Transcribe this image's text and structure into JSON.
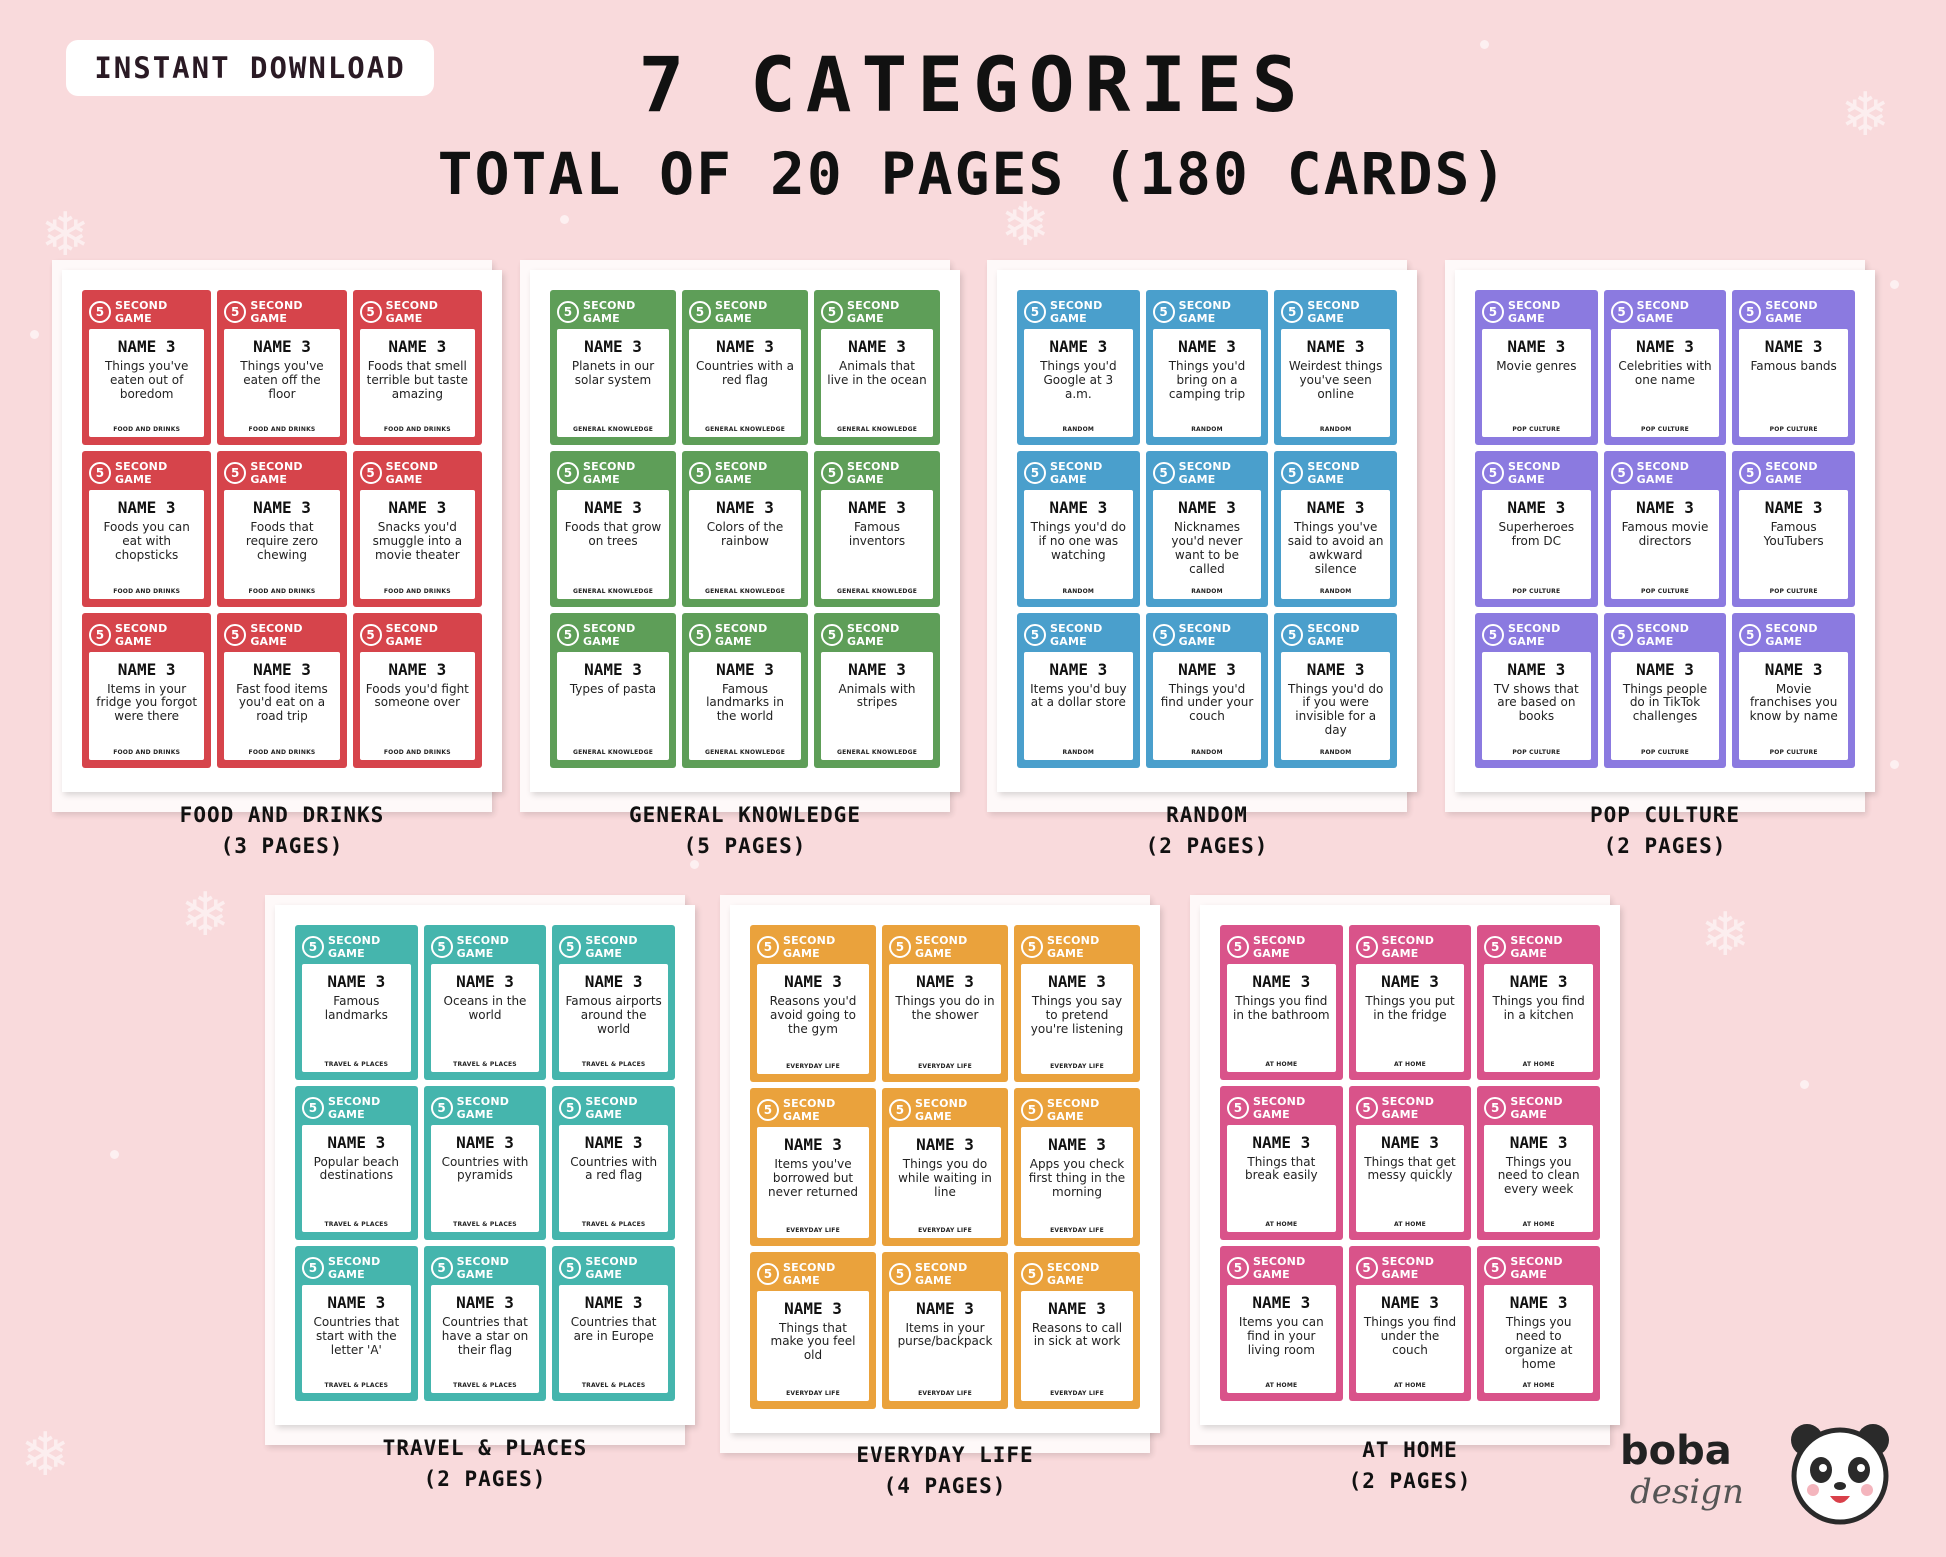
{
  "header": {
    "badge": "INSTANT DOWNLOAD",
    "title": "7 CATEGORIES",
    "subtitle": "TOTAL OF 20 PAGES (180 CARDS)"
  },
  "card_brand": "SECOND GAME",
  "card_number": "5",
  "card_heading": "NAME 3",
  "logo": {
    "name": "boba",
    "sub": "design",
    "icon": "panda-face-icon"
  },
  "categories": [
    {
      "label": "FOOD AND DRINKS",
      "pages": "(3 PAGES)",
      "footer": "FOOD AND DRINKS",
      "color": "#d6444b",
      "cards": [
        "Things you've eaten out of boredom",
        "Things you've eaten off the floor",
        "Foods that smell terrible but taste amazing",
        "Foods you can eat with chopsticks",
        "Foods that require zero chewing",
        "Snacks you'd smuggle into a movie theater",
        "Items in your fridge you forgot were there",
        "Fast food items you'd eat on a road trip",
        "Foods you'd fight someone over"
      ]
    },
    {
      "label": "GENERAL KNOWLEDGE",
      "pages": "(5 PAGES)",
      "footer": "GENERAL KNOWLEDGE",
      "color": "#5e9e58",
      "cards": [
        "Planets in our solar system",
        "Countries with a red flag",
        "Animals that live in the ocean",
        "Foods that grow on trees",
        "Colors of the rainbow",
        "Famous inventors",
        "Types of pasta",
        "Famous landmarks in the world",
        "Animals with stripes"
      ]
    },
    {
      "label": "RANDOM",
      "pages": "(2 PAGES)",
      "footer": "RANDOM",
      "color": "#4a9fcc",
      "cards": [
        "Things you'd Google at 3 a.m.",
        "Things you'd bring on a camping trip",
        "Weirdest things you've seen online",
        "Things you'd do if no one was watching",
        "Nicknames you'd never want to be called",
        "Things you've said to avoid an awkward silence",
        "Items you'd buy at a dollar store",
        "Things you'd find under your couch",
        "Things you'd do if you were invisible for a day"
      ]
    },
    {
      "label": "POP CULTURE",
      "pages": "(2 PAGES)",
      "footer": "POP CULTURE",
      "color": "#8b7ae0",
      "cards": [
        "Movie genres",
        "Celebrities with one name",
        "Famous bands",
        "Superheroes from DC",
        "Famous movie directors",
        "Famous YouTubers",
        "TV shows that are based on books",
        "Things people do in TikTok challenges",
        "Movie franchises you know by name"
      ]
    },
    {
      "label": "TRAVEL & PLACES",
      "pages": "(2 PAGES)",
      "footer": "TRAVEL & PLACES",
      "color": "#45b5ad",
      "cards": [
        "Famous landmarks",
        "Oceans in the world",
        "Famous airports around the world",
        "Popular beach destinations",
        "Countries with pyramids",
        "Countries with a red flag",
        "Countries that start with the letter 'A'",
        "Countries that have a star on their flag",
        "Countries that are in Europe"
      ]
    },
    {
      "label": "EVERYDAY LIFE",
      "pages": "(4 PAGES)",
      "footer": "EVERYDAY LIFE",
      "color": "#eaa23c",
      "cards": [
        "Reasons you'd avoid going to the gym",
        "Things you do in the shower",
        "Things you say to pretend you're listening",
        "Items you've borrowed but never returned",
        "Things you do while waiting in line",
        "Apps you check first thing in the morning",
        "Things that make you feel old",
        "Items in your purse/backpack",
        "Reasons to call in sick at work"
      ]
    },
    {
      "label": "AT HOME",
      "pages": "(2 PAGES)",
      "footer": "AT HOME",
      "color": "#d9538a",
      "cards": [
        "Things you find in the bathroom",
        "Things you put in the fridge",
        "Things you find in a kitchen",
        "Things that break easily",
        "Things that get messy quickly",
        "Things you need to clean every week",
        "Items you can find in your living room",
        "Things you find under the couch",
        "Things you need to organize at home"
      ]
    }
  ]
}
